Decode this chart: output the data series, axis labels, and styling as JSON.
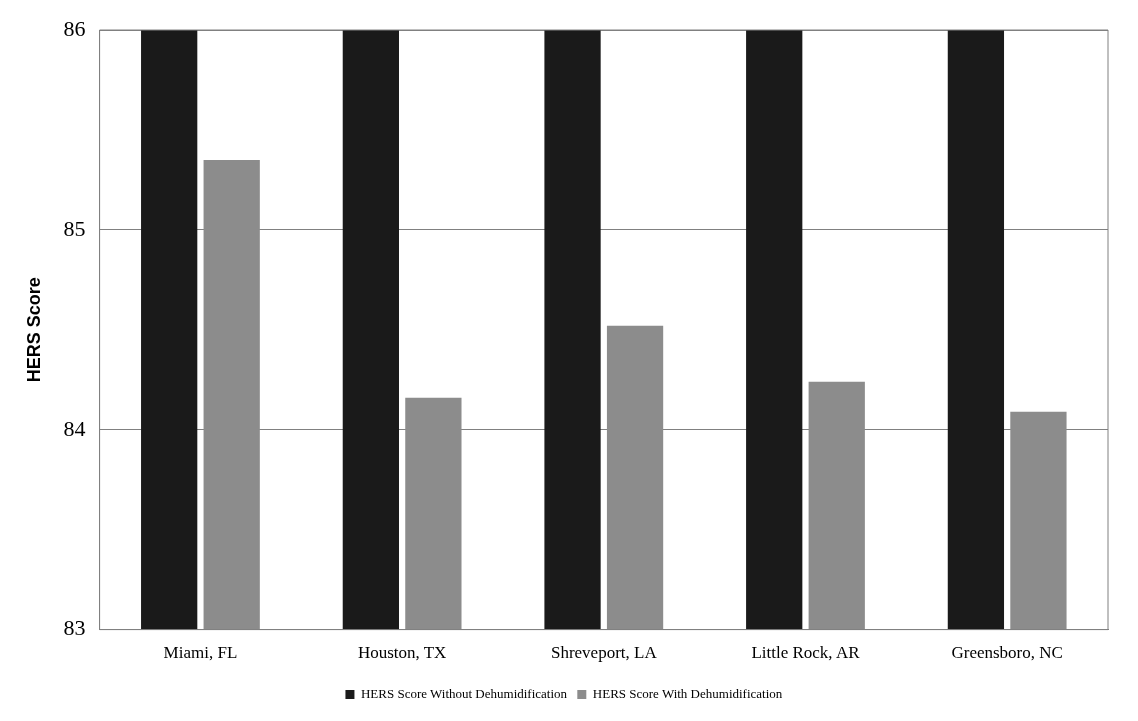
{
  "chart_data": {
    "type": "bar",
    "ylabel": "HERS Score",
    "categories": [
      "Miami, FL",
      "Houston, TX",
      "Shreveport, LA",
      "Little Rock, AR",
      "Greensboro, NC"
    ],
    "series": [
      {
        "name": "HERS Score Without Dehumidification",
        "color": "#1a1a1a",
        "values": [
          86,
          86,
          86,
          86,
          86
        ]
      },
      {
        "name": "HERS Score With Dehumidification",
        "color": "#8c8c8c",
        "values": [
          85.35,
          84.16,
          84.52,
          84.24,
          84.09
        ]
      }
    ],
    "ylim": [
      83,
      86
    ],
    "yticks": [
      83,
      84,
      85,
      86
    ],
    "grid": "y",
    "legend": "bottom"
  }
}
